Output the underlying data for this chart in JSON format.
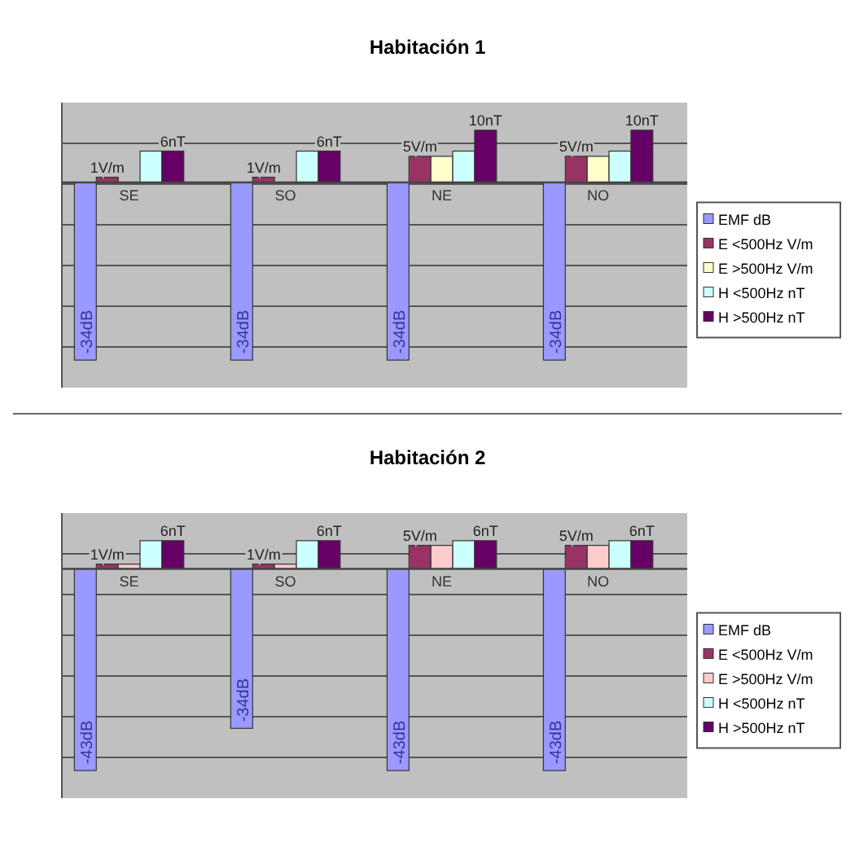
{
  "chart_data": [
    {
      "type": "bar",
      "title": "Habitación 1",
      "categories": [
        "SE",
        "SO",
        "NE",
        "NO"
      ],
      "grid": true,
      "legend": "right",
      "series": [
        {
          "name": "EMF dB",
          "color": "#9999ff",
          "values": [
            -34,
            -34,
            -34,
            -34
          ],
          "value_labels": [
            "-34dB",
            "-34dB",
            "-34dB",
            "-34dB"
          ]
        },
        {
          "name": "E <500Hz V/m",
          "color": "#993366",
          "values": [
            1,
            1,
            5,
            5
          ],
          "value_labels": [
            "1V/m",
            "1V/m",
            "5V/m",
            "5V/m"
          ]
        },
        {
          "name": "E >500Hz V/m",
          "color": "#ffffcc",
          "values": [
            null,
            null,
            5,
            5
          ],
          "value_labels": [
            null,
            null,
            null,
            null
          ]
        },
        {
          "name": "H <500Hz nT",
          "color": "#ccffff",
          "values": [
            6,
            6,
            6,
            6
          ],
          "value_labels": [
            null,
            null,
            null,
            null
          ]
        },
        {
          "name": "H >500Hz nT",
          "color": "#660066",
          "values": [
            6,
            6,
            10,
            10
          ],
          "value_labels": [
            "6nT",
            "6nT",
            "10nT",
            "10nT"
          ]
        }
      ]
    },
    {
      "type": "bar",
      "title": "Habitación 2",
      "categories": [
        "SE",
        "SO",
        "NE",
        "NO"
      ],
      "grid": true,
      "legend": "right",
      "series": [
        {
          "name": "EMF dB",
          "color": "#9999ff",
          "values": [
            -43,
            -34,
            -43,
            -43
          ],
          "value_labels": [
            "-43dB",
            "-34dB",
            "-43dB",
            "-43dB"
          ]
        },
        {
          "name": "E <500Hz V/m",
          "color": "#993366",
          "values": [
            1,
            1,
            5,
            5
          ],
          "value_labels": [
            "1V/m",
            "1V/m",
            "5V/m",
            "5V/m"
          ]
        },
        {
          "name": "E >500Hz V/m",
          "color": "#ffcccc",
          "values": [
            1,
            1,
            5,
            5
          ],
          "value_labels": [
            null,
            null,
            null,
            null
          ]
        },
        {
          "name": "H <500Hz nT",
          "color": "#ccffff",
          "values": [
            6,
            6,
            6,
            6
          ],
          "value_labels": [
            null,
            null,
            null,
            null
          ]
        },
        {
          "name": "H >500Hz nT",
          "color": "#660066",
          "values": [
            6,
            6,
            6,
            6
          ],
          "value_labels": [
            "6nT",
            "6nT",
            "6nT",
            "6nT"
          ]
        }
      ]
    }
  ]
}
